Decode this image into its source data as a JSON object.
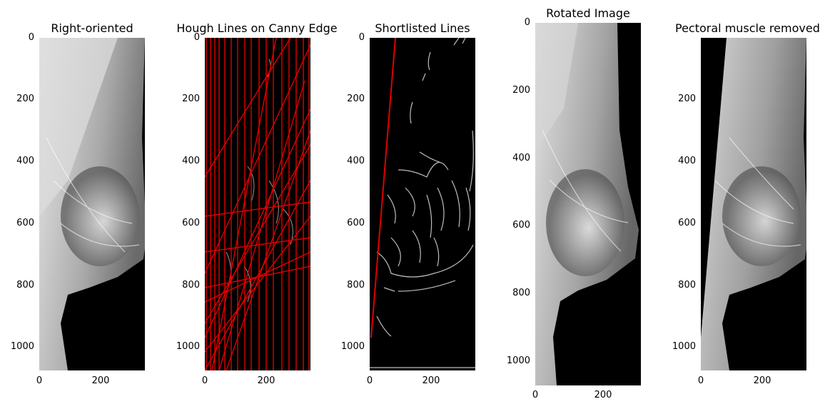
{
  "panels": [
    {
      "id": "right-oriented",
      "title": "Right-oriented",
      "y_ticks": [
        "0",
        "200",
        "400",
        "600",
        "800",
        "1000"
      ],
      "x_ticks": [
        "0",
        "200"
      ],
      "content": "mammogram-grayscale"
    },
    {
      "id": "hough-lines",
      "title": "Hough Lines on Canny Edge",
      "y_ticks": [
        "0",
        "200",
        "400",
        "600",
        "800",
        "1000"
      ],
      "x_ticks": [
        "0",
        "200"
      ],
      "content": "edges-with-red-lines"
    },
    {
      "id": "shortlisted-lines",
      "title": "Shortlisted Lines",
      "y_ticks": [
        "0",
        "200",
        "400",
        "600",
        "800",
        "1000"
      ],
      "x_ticks": [
        "0",
        "200"
      ],
      "content": "edges-with-one-red-line"
    },
    {
      "id": "rotated-image",
      "title": "Rotated Image",
      "y_ticks": [
        "0",
        "200",
        "400",
        "600",
        "800",
        "1000"
      ],
      "x_ticks": [
        "0",
        "200"
      ],
      "content": "rotated-mammogram"
    },
    {
      "id": "pectoral-removed",
      "title": "Pectoral muscle removed",
      "y_ticks": [
        "200",
        "400",
        "600",
        "800",
        "1000"
      ],
      "x_ticks": [
        "0",
        "200"
      ],
      "content": "mammogram-muscle-removed"
    }
  ],
  "colors": {
    "background": "#ffffff",
    "image_background": "#000000",
    "hough_line": "#e00000",
    "edge": "#bdbdbd"
  }
}
